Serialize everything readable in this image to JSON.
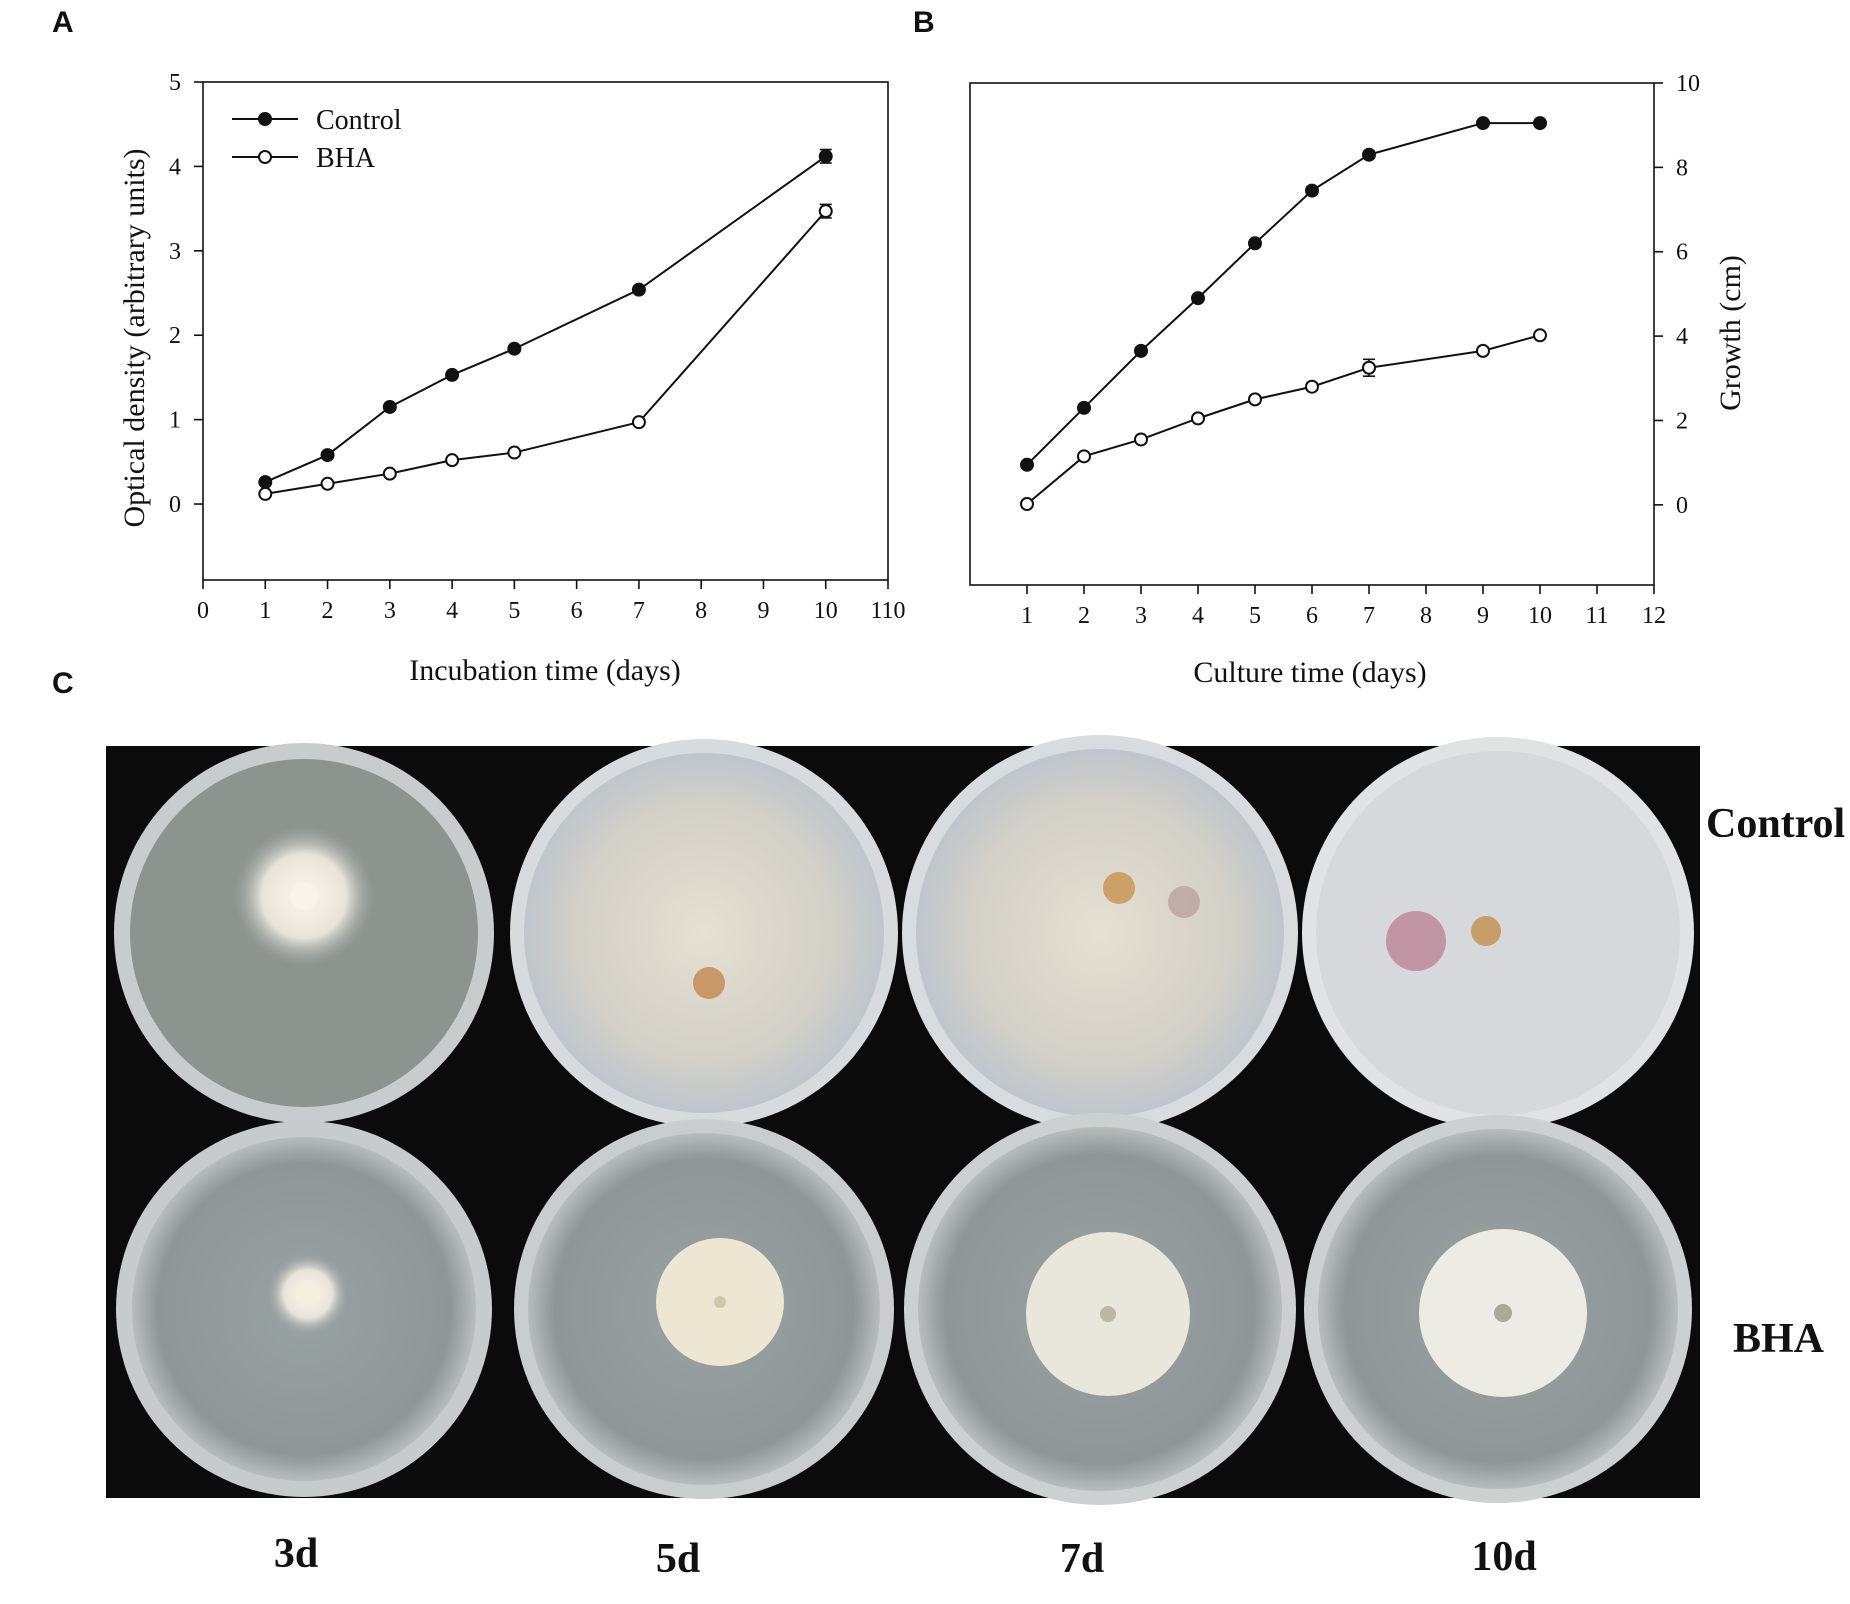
{
  "panels": {
    "a": "A",
    "b": "B",
    "c": "C"
  },
  "chart_data": [
    {
      "type": "line",
      "panel": "A",
      "xlabel": "Incubation time (days)",
      "ylabel": "Optical density (arbitrary units)",
      "xlim": [
        0,
        11
      ],
      "ylim": [
        -0.9,
        5
      ],
      "xticks": [
        "0",
        "1",
        "2",
        "3",
        "4",
        "5",
        "6",
        "7",
        "8",
        "9",
        "10",
        "110"
      ],
      "yticks": [
        "0",
        "1",
        "2",
        "3",
        "4",
        "5"
      ],
      "legend_position": "top-left",
      "series": [
        {
          "name": "Control",
          "marker": "filled-circle",
          "x": [
            1,
            2,
            3,
            4,
            5,
            7,
            10
          ],
          "y": [
            0.26,
            0.58,
            1.15,
            1.53,
            1.84,
            2.54,
            4.12
          ],
          "err": [
            0.02,
            0.02,
            0.03,
            0.03,
            0.03,
            0.04,
            0.08
          ]
        },
        {
          "name": "BHA",
          "marker": "open-circle",
          "x": [
            1,
            2,
            3,
            4,
            5,
            7,
            10
          ],
          "y": [
            0.12,
            0.24,
            0.36,
            0.52,
            0.61,
            0.97,
            3.47
          ],
          "err": [
            0.02,
            0.02,
            0.02,
            0.02,
            0.02,
            0.03,
            0.08
          ]
        }
      ]
    },
    {
      "type": "line",
      "panel": "B",
      "xlabel": "Culture time (days)",
      "ylabel": "Growth (cm)",
      "y_axis_side": "right",
      "xlim": [
        0,
        12
      ],
      "ylim": [
        -1.9,
        10
      ],
      "xticks": [
        "1",
        "2",
        "3",
        "4",
        "5",
        "6",
        "7",
        "8",
        "9",
        "10",
        "11",
        "12"
      ],
      "yticks": [
        "0",
        "2",
        "4",
        "6",
        "8",
        "10"
      ],
      "series": [
        {
          "marker": "filled-circle",
          "x": [
            1,
            2,
            3,
            4,
            5,
            6,
            7,
            9,
            10
          ],
          "y": [
            0.95,
            2.3,
            3.65,
            4.9,
            6.2,
            7.45,
            8.3,
            9.05,
            9.05
          ],
          "err": [
            0.05,
            0.05,
            0.06,
            0.06,
            0.08,
            0.08,
            0.08,
            0.05,
            0.05
          ]
        },
        {
          "marker": "open-circle",
          "x": [
            1,
            2,
            3,
            4,
            5,
            6,
            7,
            9,
            10
          ],
          "y": [
            0.02,
            1.15,
            1.55,
            2.05,
            2.5,
            2.8,
            3.25,
            3.65,
            4.02
          ],
          "err": [
            0.05,
            0.06,
            0.06,
            0.06,
            0.08,
            0.08,
            0.2,
            0.08,
            0.06
          ]
        }
      ]
    }
  ],
  "plates": {
    "row_labels": {
      "control": "Control",
      "bha": "BHA"
    },
    "time_labels": [
      "3d",
      "5d",
      "7d",
      "10d"
    ]
  }
}
